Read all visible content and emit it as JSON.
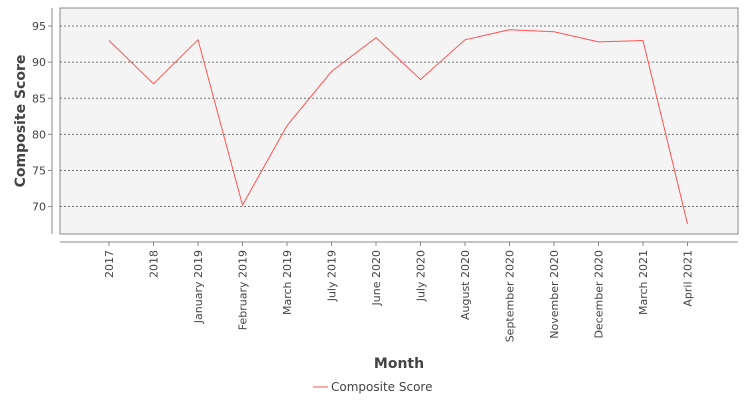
{
  "chart_data": {
    "type": "line",
    "categories": [
      "2017",
      "2018",
      "January 2019",
      "February 2019",
      "March 2019",
      "July 2019",
      "June 2020",
      "July 2020",
      "August 2020",
      "September 2020",
      "November 2020",
      "December 2020",
      "March 2021",
      "April 2021"
    ],
    "series": [
      {
        "name": "Composite Score",
        "values": [
          93.0,
          87.0,
          93.1,
          70.2,
          81.2,
          88.7,
          93.4,
          87.6,
          93.1,
          94.5,
          94.2,
          92.8,
          93.0,
          67.6
        ],
        "color": "#ff5555"
      }
    ],
    "xlabel": "Month",
    "ylabel": "Composite Score",
    "ylim": [
      66.2,
      97.5
    ],
    "yticks": [
      70,
      75,
      80,
      85,
      90,
      95
    ],
    "grid": true,
    "legend_position": "bottom-center",
    "colors": {
      "plot_background": "#f4f4f4",
      "gridline": "#777777",
      "text": "#444444"
    }
  }
}
